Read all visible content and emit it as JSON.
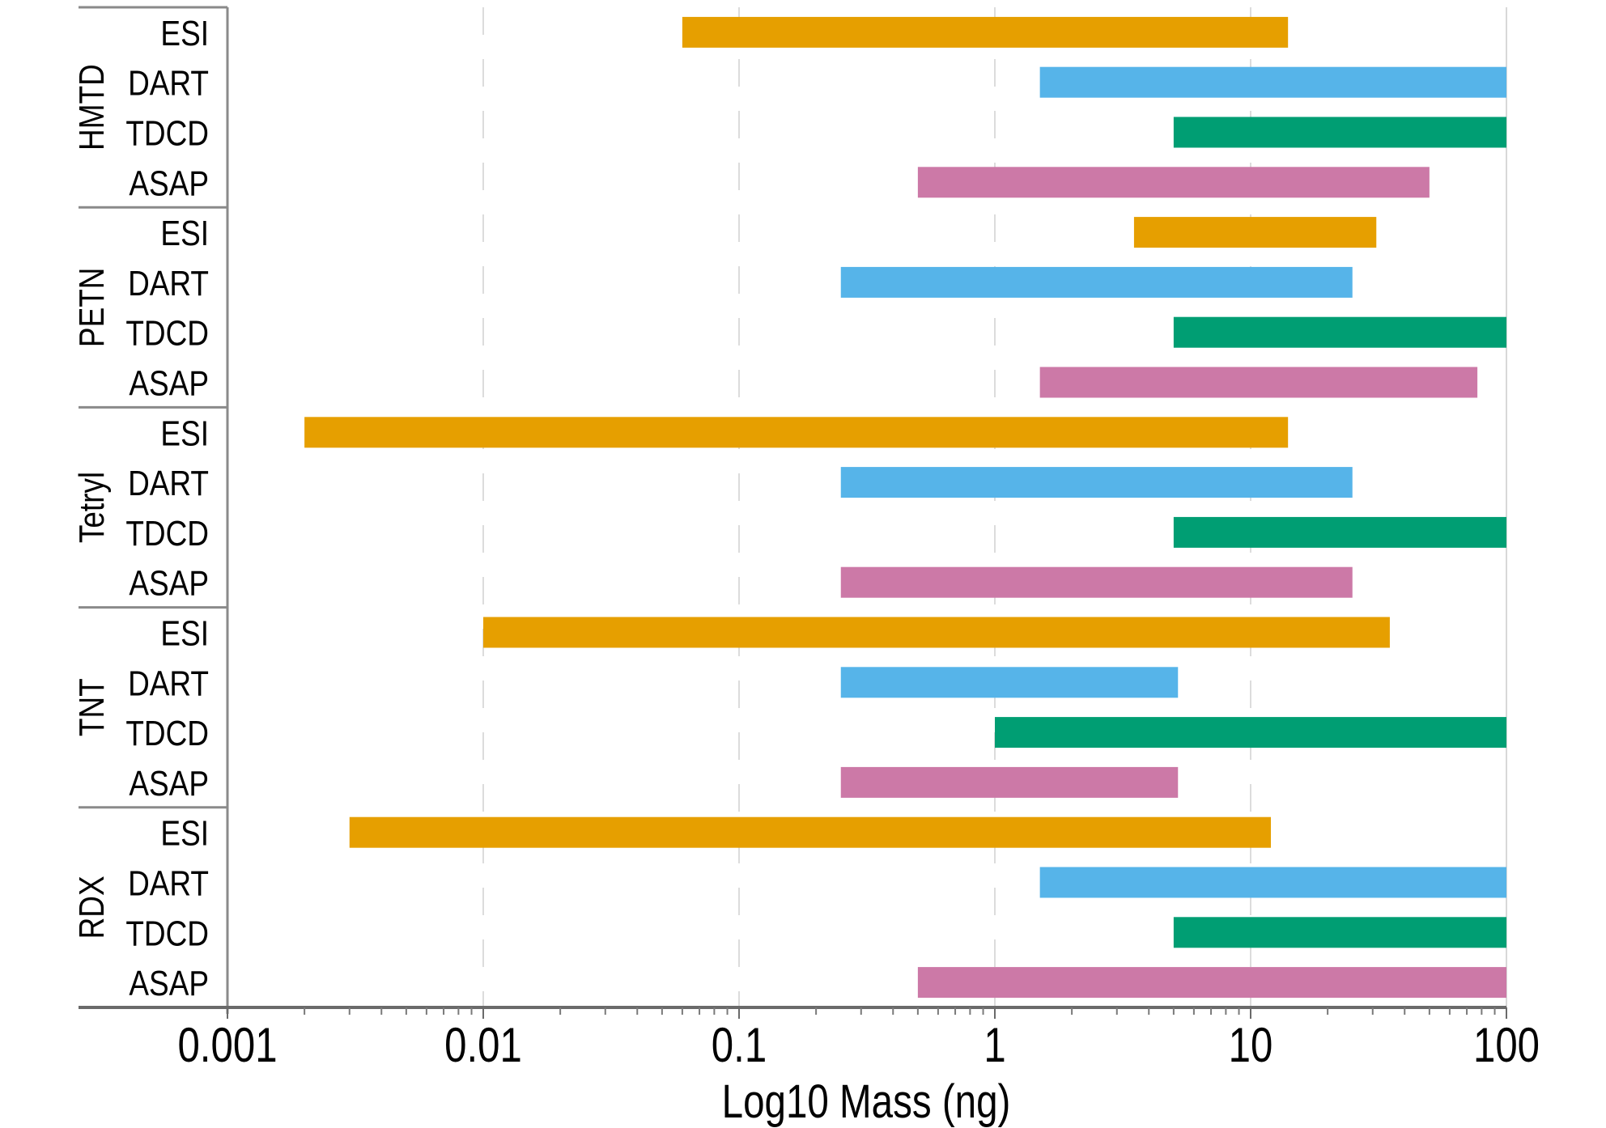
{
  "chart_data": {
    "type": "bar",
    "subtype": "floating-range-horizontal",
    "title": "",
    "xlabel": "Log10 Mass (ng)",
    "ylabel": "",
    "xscale": "log",
    "xlim": [
      0.001,
      100
    ],
    "x_ticks": [
      0.001,
      0.01,
      0.1,
      1,
      10,
      100
    ],
    "x_tick_labels": [
      "0.001",
      "0.01",
      "0.1",
      "1",
      "10",
      "100"
    ],
    "grid": "vertical dashed at decades",
    "legend": "none",
    "methods": [
      "ESI",
      "DART",
      "TDCD",
      "ASAP"
    ],
    "method_colors": {
      "ESI": "#E69F00",
      "DART": "#56B4E9",
      "TDCD": "#009E73",
      "ASAP": "#CC79A7"
    },
    "groups": [
      {
        "name": "HMTD",
        "ranges": [
          {
            "method": "ESI",
            "min": 0.06,
            "max": 14
          },
          {
            "method": "DART",
            "min": 1.5,
            "max": 100
          },
          {
            "method": "TDCD",
            "min": 5,
            "max": 100
          },
          {
            "method": "ASAP",
            "min": 0.5,
            "max": 50
          }
        ]
      },
      {
        "name": "PETN",
        "ranges": [
          {
            "method": "ESI",
            "min": 3.5,
            "max": 31
          },
          {
            "method": "DART",
            "min": 0.25,
            "max": 25
          },
          {
            "method": "TDCD",
            "min": 5,
            "max": 100
          },
          {
            "method": "ASAP",
            "min": 1.5,
            "max": 77
          }
        ]
      },
      {
        "name": "Tetryl",
        "ranges": [
          {
            "method": "ESI",
            "min": 0.002,
            "max": 14
          },
          {
            "method": "DART",
            "min": 0.25,
            "max": 25
          },
          {
            "method": "TDCD",
            "min": 5,
            "max": 100
          },
          {
            "method": "ASAP",
            "min": 0.25,
            "max": 25
          }
        ]
      },
      {
        "name": "TNT",
        "ranges": [
          {
            "method": "ESI",
            "min": 0.01,
            "max": 35
          },
          {
            "method": "DART",
            "min": 0.25,
            "max": 5.2
          },
          {
            "method": "TDCD",
            "min": 1,
            "max": 100
          },
          {
            "method": "ASAP",
            "min": 0.25,
            "max": 5.2
          }
        ]
      },
      {
        "name": "RDX",
        "ranges": [
          {
            "method": "ESI",
            "min": 0.003,
            "max": 12
          },
          {
            "method": "DART",
            "min": 1.5,
            "max": 100
          },
          {
            "method": "TDCD",
            "min": 5,
            "max": 100
          },
          {
            "method": "ASAP",
            "min": 0.5,
            "max": 100
          }
        ]
      }
    ]
  }
}
